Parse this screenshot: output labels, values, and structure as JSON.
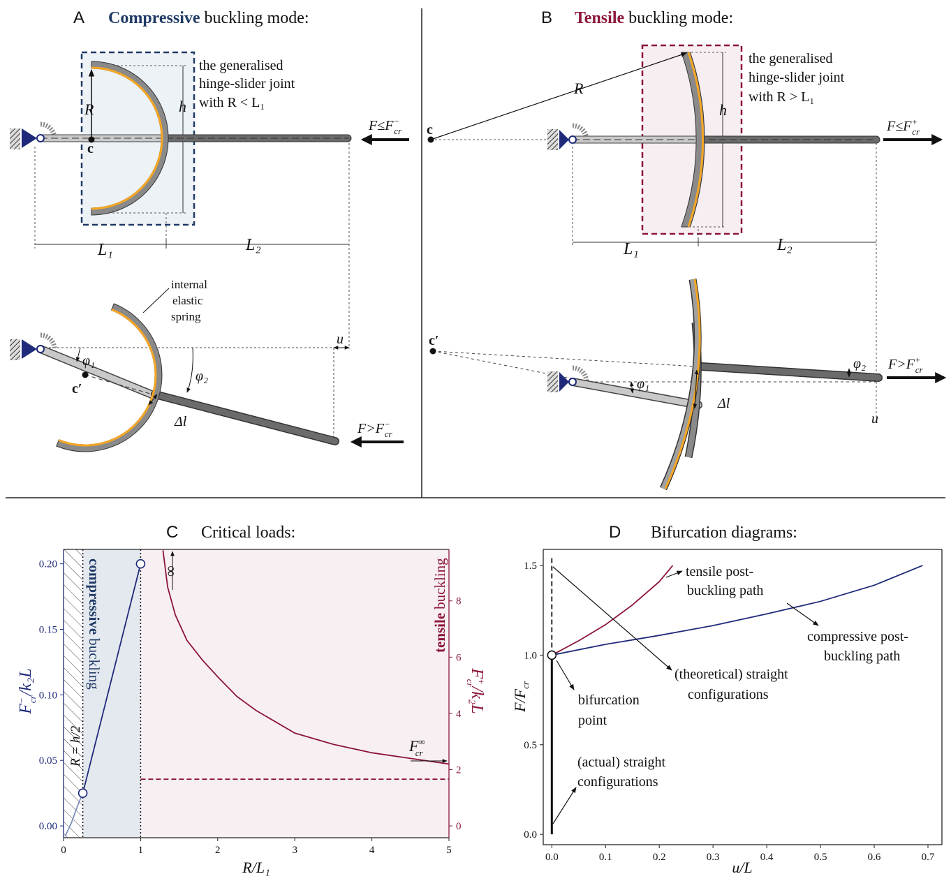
{
  "panel_a": {
    "letter": "A",
    "title_bold": "Compressive",
    "title_rest": "buckling mode:",
    "note": [
      "the generalised",
      "hinge-slider joint",
      "with R < L₁"
    ],
    "radius": "R",
    "height": "h",
    "center": "c",
    "center_deformed": "c′",
    "force_straight": [
      "F≤F",
      "−",
      "cr"
    ],
    "force_buckled": [
      "F>F",
      "−",
      "cr"
    ],
    "span_1": "L₁",
    "span_2": "L₂",
    "spring_note": [
      "internal",
      "elastic",
      "spring"
    ],
    "rotation_1": "φ₁",
    "rotation_2": "φ₂",
    "slip": "Δl",
    "displacement": "u"
  },
  "panel_b": {
    "letter": "B",
    "title_bold": "Tensile",
    "title_rest": "buckling mode:",
    "note": [
      "the generalised",
      "hinge-slider joint",
      "with R > L₁"
    ],
    "radius": "R",
    "height": "h",
    "center": "c",
    "center_deformed": "c′",
    "force_straight": [
      "F≤F",
      "+",
      "cr"
    ],
    "force_buckled": [
      "F>F",
      "+",
      "cr"
    ],
    "span_1": "L₁",
    "span_2": "L₂",
    "rotation_1": "φ₁",
    "rotation_2": "φ₂",
    "slip": "Δl",
    "displacement": "u"
  },
  "chart_data": [
    {
      "type": "line",
      "letter": "C",
      "title": "Critical loads:",
      "xlabel": "R/L₁",
      "ylabel": [
        "F",
        "−",
        "cr",
        "/k₂L"
      ],
      "y2label": [
        "F",
        "+",
        "cr",
        "/k₂L"
      ],
      "xlim": [
        0,
        5
      ],
      "xticks": [
        0,
        1,
        2,
        3,
        4,
        5
      ],
      "ylim": [
        -0.009,
        0.211
      ],
      "yticks": [
        {
          "value": 0,
          "label": "0.00"
        },
        0.05,
        {
          "value": 0.1,
          "label": "0.10"
        },
        0.15,
        {
          "value": 0.2,
          "label": "0.20"
        }
      ],
      "y2lim": [
        -0.42,
        9.83
      ],
      "y2ticks": [
        0,
        2,
        4,
        6,
        8
      ],
      "y_color": "#1f2a7a",
      "y2_color": "#8b1538",
      "regions": [
        {
          "x": [
            0,
            0.25
          ],
          "fill": "hatch"
        },
        {
          "x": [
            0.25,
            1
          ],
          "fill": "#e4e9ef"
        },
        {
          "x": [
            1,
            5
          ],
          "fill": "#f8eff2"
        }
      ],
      "vlines": [
        0.25,
        1
      ],
      "series": [
        {
          "color": "#7f8fc0",
          "x": [
            0.02,
            0.1,
            0.18,
            0.25
          ],
          "values": [
            -0.008,
            0.002,
            0.015,
            0.025
          ]
        },
        {
          "color": "#1f2a7a",
          "x": [
            0.25,
            0.4,
            0.55,
            0.7,
            0.85,
            1
          ],
          "values": [
            0.025,
            0.06,
            0.095,
            0.13,
            0.165,
            0.2
          ]
        },
        {
          "color": "#8b1538",
          "axis": "y2",
          "x": [
            1.29,
            1.35,
            1.45,
            1.6,
            1.8,
            2,
            2.25,
            2.5,
            3,
            3.5,
            4,
            4.5,
            5
          ],
          "values": [
            9.8,
            8.5,
            7.5,
            6.6,
            5.9,
            5.3,
            4.6,
            4.1,
            3.3,
            2.9,
            2.6,
            2.4,
            2.2
          ]
        },
        {
          "color": "#8b1538",
          "axis": "y2",
          "line_style": "dashed",
          "x": [
            1,
            5
          ],
          "values": [
            1.66,
            1.66
          ]
        }
      ],
      "markers": {
        "color": "#1f2a7a",
        "x": [
          0.25,
          1
        ],
        "values": [
          0.025,
          0.2
        ]
      },
      "annotations": {
        "compressive": [
          "compressive",
          "buckling"
        ],
        "tensile": [
          "tensile",
          "buckling"
        ],
        "radius_limit": "R = h/2",
        "infinity": "∞",
        "limit_load": [
          "F",
          "∞",
          "cr"
        ]
      }
    },
    {
      "type": "line",
      "letter": "D",
      "title": "Bifurcation diagrams:",
      "xlabel": "u/L",
      "ylabel": [
        "F/F",
        "cr"
      ],
      "xlim": [
        -0.016,
        0.726
      ],
      "xticks": [
        {
          "value": 0,
          "label": "0.0"
        },
        0.1,
        0.2,
        0.3,
        0.4,
        0.5,
        0.6,
        0.7
      ],
      "ylim": [
        -0.058,
        1.59
      ],
      "yticks": [
        {
          "value": 0,
          "label": "0.0"
        },
        0.5,
        {
          "value": 1,
          "label": "1.0"
        },
        1.5
      ],
      "series": [
        {
          "color": "#1f2a7a",
          "x": [
            0,
            0.1,
            0.2,
            0.3,
            0.4,
            0.5,
            0.6,
            0.69
          ],
          "values": [
            1,
            1.06,
            1.11,
            1.165,
            1.23,
            1.3,
            1.39,
            1.5
          ]
        },
        {
          "color": "#8b1538",
          "x": [
            0,
            0.05,
            0.1,
            0.15,
            0.2,
            0.225
          ],
          "values": [
            1,
            1.08,
            1.17,
            1.28,
            1.41,
            1.5
          ]
        },
        {
          "color": "#111111",
          "line_width": 3,
          "x": [
            0,
            0
          ],
          "values": [
            0,
            1
          ]
        },
        {
          "color": "#111111",
          "line_style": "dashed",
          "x": [
            0,
            0
          ],
          "values": [
            1,
            1.55
          ]
        }
      ],
      "markers": {
        "color": "#111111",
        "x": [
          0
        ],
        "values": [
          1
        ]
      },
      "annotations": {
        "tensile": [
          "tensile post-",
          "buckling path"
        ],
        "compressive": [
          "compressive post-",
          "buckling path"
        ],
        "theoretical": [
          "(theoretical) straight",
          "configurations"
        ],
        "bifurcation": [
          "bifurcation",
          "point"
        ],
        "actual": [
          "(actual) straight",
          "configurations"
        ]
      }
    }
  ]
}
